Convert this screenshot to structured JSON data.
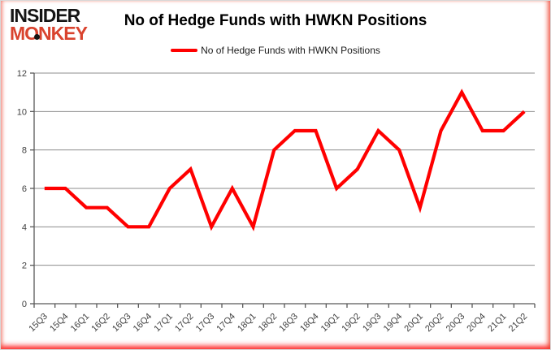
{
  "logo": {
    "line1": "INSIDER",
    "line2": "MONKEY"
  },
  "header": {
    "title": "No of Hedge Funds with HWKN Positions"
  },
  "legend": {
    "label": "No of Hedge Funds with HWKN Positions"
  },
  "colors": {
    "line": "#ff0000",
    "logo_red": "#d9432e",
    "grid": "#8c8c8c",
    "axis": "#595959",
    "tick_label": "#3f3f3f"
  },
  "chart_data": {
    "type": "line",
    "title": "No of Hedge Funds with HWKN Positions",
    "categories": [
      "15Q3",
      "15Q4",
      "16Q1",
      "16Q2",
      "16Q3",
      "16Q4",
      "17Q1",
      "17Q2",
      "17Q3",
      "17Q4",
      "18Q1",
      "18Q2",
      "18Q3",
      "18Q4",
      "19Q1",
      "19Q2",
      "19Q3",
      "19Q4",
      "20Q1",
      "20Q2",
      "20Q3",
      "20Q4",
      "21Q1",
      "21Q2"
    ],
    "series": [
      {
        "name": "No of Hedge Funds with HWKN Positions",
        "color": "#ff0000",
        "values": [
          6,
          6,
          5,
          5,
          4,
          4,
          6,
          7,
          4,
          6,
          4,
          8,
          9,
          9,
          6,
          7,
          9,
          8,
          5,
          9,
          11,
          9,
          9,
          10
        ]
      }
    ],
    "xlabel": "",
    "ylabel": "",
    "ylim": [
      0,
      12
    ],
    "ytick_interval": 2,
    "grid": true,
    "legend_position": "top"
  }
}
